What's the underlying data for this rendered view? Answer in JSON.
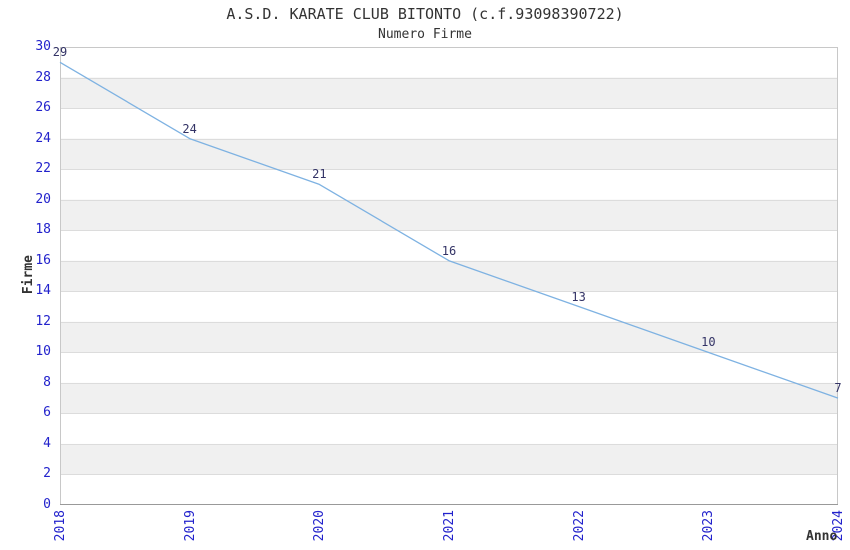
{
  "chart_data": {
    "type": "line",
    "title": "A.S.D. KARATE CLUB BITONTO (c.f.93098390722)",
    "subtitle": "Numero Firme",
    "xlabel": "Anno",
    "ylabel": "Firme",
    "categories": [
      "2018",
      "2019",
      "2020",
      "2021",
      "2022",
      "2023",
      "2024"
    ],
    "values": [
      29,
      24,
      21,
      16,
      13,
      10,
      7
    ],
    "ylim": [
      0,
      30
    ],
    "ytick_step": 2,
    "grid": true,
    "legend_position": "none",
    "band_pattern": "alternating 2-unit horizontal stripes, white from 30-28 then gray 28-26, etc.",
    "colors": {
      "line": "#7EB2E2",
      "tick_labels": "#2222CC",
      "point_labels": "#333366",
      "band": "#F0F0F0",
      "gridline": "#DCDCDC",
      "border": "#C8C8C8",
      "axis": "#999999",
      "title": "#333333"
    }
  }
}
